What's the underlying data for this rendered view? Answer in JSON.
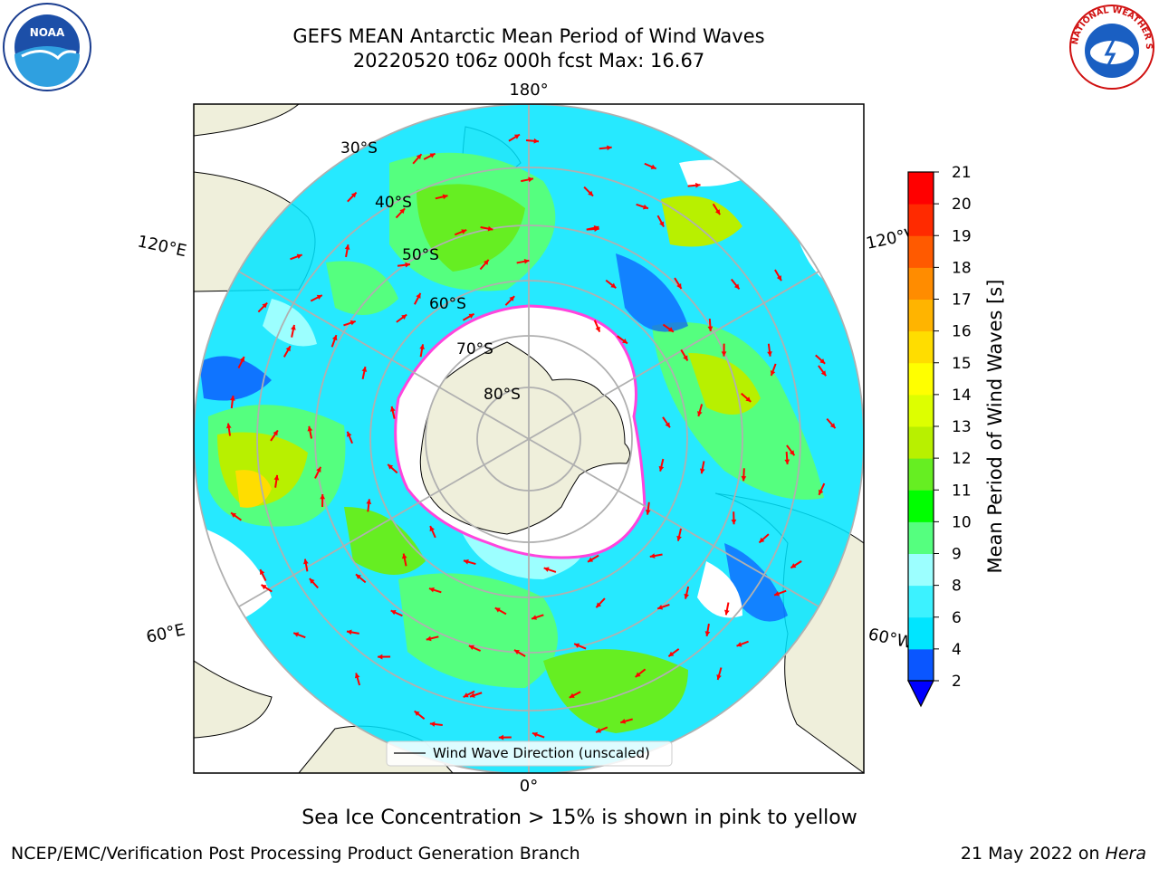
{
  "title_line1": "GEFS MEAN Antarctic Mean Period of Wind Waves",
  "title_line2": "20220520 t06z 000h fcst   Max: 16.67",
  "map": {
    "projection": "south-polar-stereographic",
    "lon_labels": {
      "top": "180°",
      "bottom": "0°",
      "upper_left": "120°E",
      "upper_right": "120°W",
      "lower_left": "60°E",
      "lower_right": "60°W"
    },
    "lat_labels": [
      "30°S",
      "40°S",
      "50°S",
      "60°S",
      "70°S",
      "80°S"
    ],
    "legend_label": "Wind Wave Direction (unscaled)",
    "arrow_color": "#ff0000"
  },
  "colorbar": {
    "label": "Mean Period of Wind Waves [s]",
    "ticks": [
      "2",
      "4",
      "6",
      "8",
      "9",
      "10",
      "11",
      "12",
      "13",
      "14",
      "15",
      "16",
      "17",
      "18",
      "19",
      "20",
      "21"
    ],
    "colors": [
      "#0a56ff",
      "#00e5ff",
      "#3cf2ff",
      "#9cffff",
      "#55ff7f",
      "#00ff00",
      "#66ee22",
      "#b8f000",
      "#ddff00",
      "#ffff00",
      "#ffdd00",
      "#ffb400",
      "#ff8c00",
      "#ff5a00",
      "#ff2a00",
      "#ff0000"
    ],
    "under_color": "#0000ff"
  },
  "max_value": 16.67,
  "sea_ice_note": "Sea Ice Concentration > 15% is shown in pink to yellow",
  "footer_left": "NCEP/EMC/Verification Post Processing Product Generation Branch",
  "footer_date": "21 May 2022 on",
  "footer_host": "Hera",
  "logos": {
    "left": "NOAA",
    "right_text": "NATIONAL WEATHER SERVICE"
  },
  "colors": {
    "land": "#efefdb",
    "ice_edge": "#ff44dd",
    "grid": "#b0b0b0"
  }
}
